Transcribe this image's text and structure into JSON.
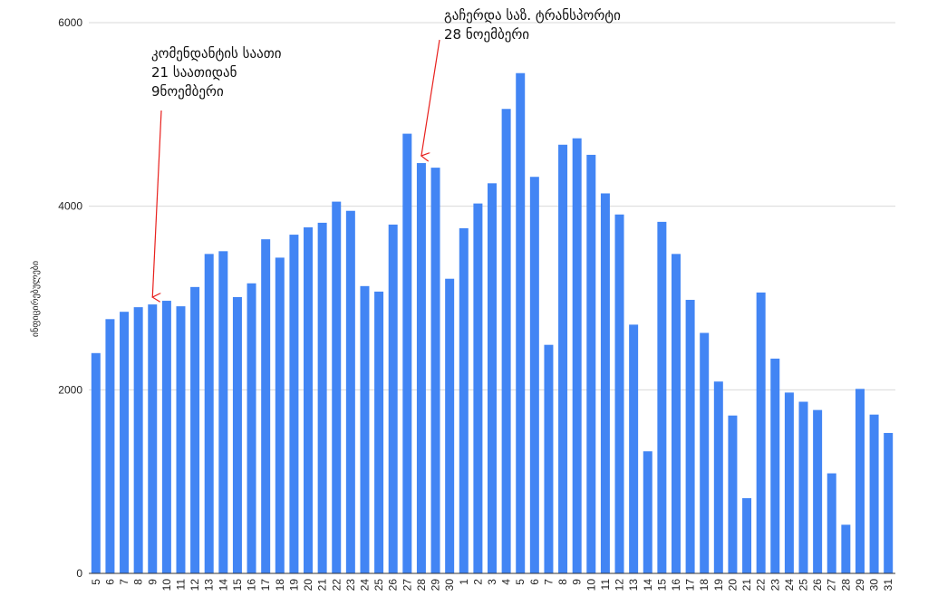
{
  "chart_data": {
    "type": "bar",
    "ylabel": "ინფიცირებულები",
    "ylim": [
      0,
      6000
    ],
    "yticks": [
      "0",
      "2000",
      "4000",
      "6000"
    ],
    "grid": true,
    "bar_color": "#4285f4",
    "annotation_color": "#e8201d",
    "categories": [
      "5",
      "6",
      "7",
      "8",
      "9",
      "10",
      "11",
      "12",
      "13",
      "14",
      "15",
      "16",
      "17",
      "18",
      "19",
      "20",
      "21",
      "22",
      "23",
      "24",
      "25",
      "26",
      "27",
      "28",
      "29",
      "30",
      "1",
      "2",
      "3",
      "4",
      "5",
      "6",
      "7",
      "8",
      "9",
      "10",
      "11",
      "12",
      "13",
      "14",
      "15",
      "16",
      "17",
      "18",
      "19",
      "20",
      "21",
      "22",
      "23",
      "24",
      "25",
      "26",
      "27",
      "28",
      "29",
      "30",
      "31"
    ],
    "values": [
      2400,
      2770,
      2850,
      2900,
      2930,
      2970,
      2910,
      3120,
      3480,
      3510,
      3010,
      3160,
      3640,
      3440,
      3690,
      3770,
      3820,
      4050,
      3950,
      3130,
      3070,
      3800,
      4790,
      4470,
      4420,
      3210,
      3760,
      4030,
      4250,
      5060,
      5450,
      4320,
      2490,
      4670,
      4740,
      4560,
      4140,
      3910,
      2710,
      1330,
      3830,
      3480,
      2980,
      2620,
      2090,
      1720,
      820,
      3060,
      2340,
      1970,
      1870,
      1780,
      1090,
      530,
      2010,
      1730,
      1530
    ],
    "annotations": [
      {
        "lines": [
          "კომენდანტის საათი",
          "21 საათიდან",
          "9ნოემბერი"
        ],
        "target_index": 4
      },
      {
        "lines": [
          "გაჩერდა საზ. ტრანსპორტი",
          "28 ნოემბერი"
        ],
        "target_index": 23
      }
    ]
  }
}
